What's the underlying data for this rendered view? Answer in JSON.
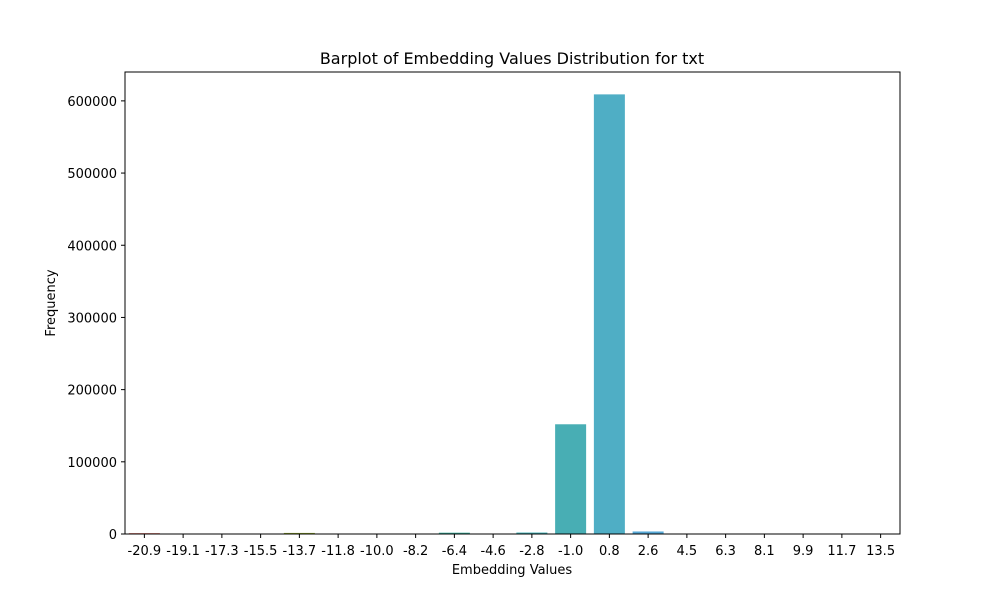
{
  "chart_data": {
    "type": "bar",
    "title": "Barplot of Embedding Values Distribution for txt",
    "xlabel": "Embedding Values",
    "ylabel": "Frequency",
    "categories": [
      "-20.9",
      "-19.1",
      "-17.3",
      "-15.5",
      "-13.7",
      "-11.8",
      "-10.0",
      "-8.2",
      "-6.4",
      "-4.6",
      "-2.8",
      "-1.0",
      "0.8",
      "2.6",
      "4.5",
      "6.3",
      "8.1",
      "9.9",
      "11.7",
      "13.5"
    ],
    "values": [
      1200,
      300,
      200,
      100,
      1500,
      300,
      200,
      400,
      1800,
      300,
      2000,
      152000,
      609000,
      3500,
      300,
      200,
      150,
      100,
      80,
      50
    ],
    "colors": [
      "#e8736b",
      "#d7883e",
      "#c0962d",
      "#a89f2d",
      "#8ea62e",
      "#5fb03b",
      "#3cb35c",
      "#36b182",
      "#38b09c",
      "#3aafa8",
      "#3fb0b4",
      "#48aeb4",
      "#4faec5",
      "#56a8d6",
      "#7f9ee6",
      "#a890ed",
      "#c983e6",
      "#df76d0",
      "#ea70b5",
      "#ee6f98"
    ],
    "ylim": [
      0,
      640000
    ],
    "yticks": [
      0,
      100000,
      200000,
      300000,
      400000,
      500000,
      600000
    ],
    "grid": false
  }
}
